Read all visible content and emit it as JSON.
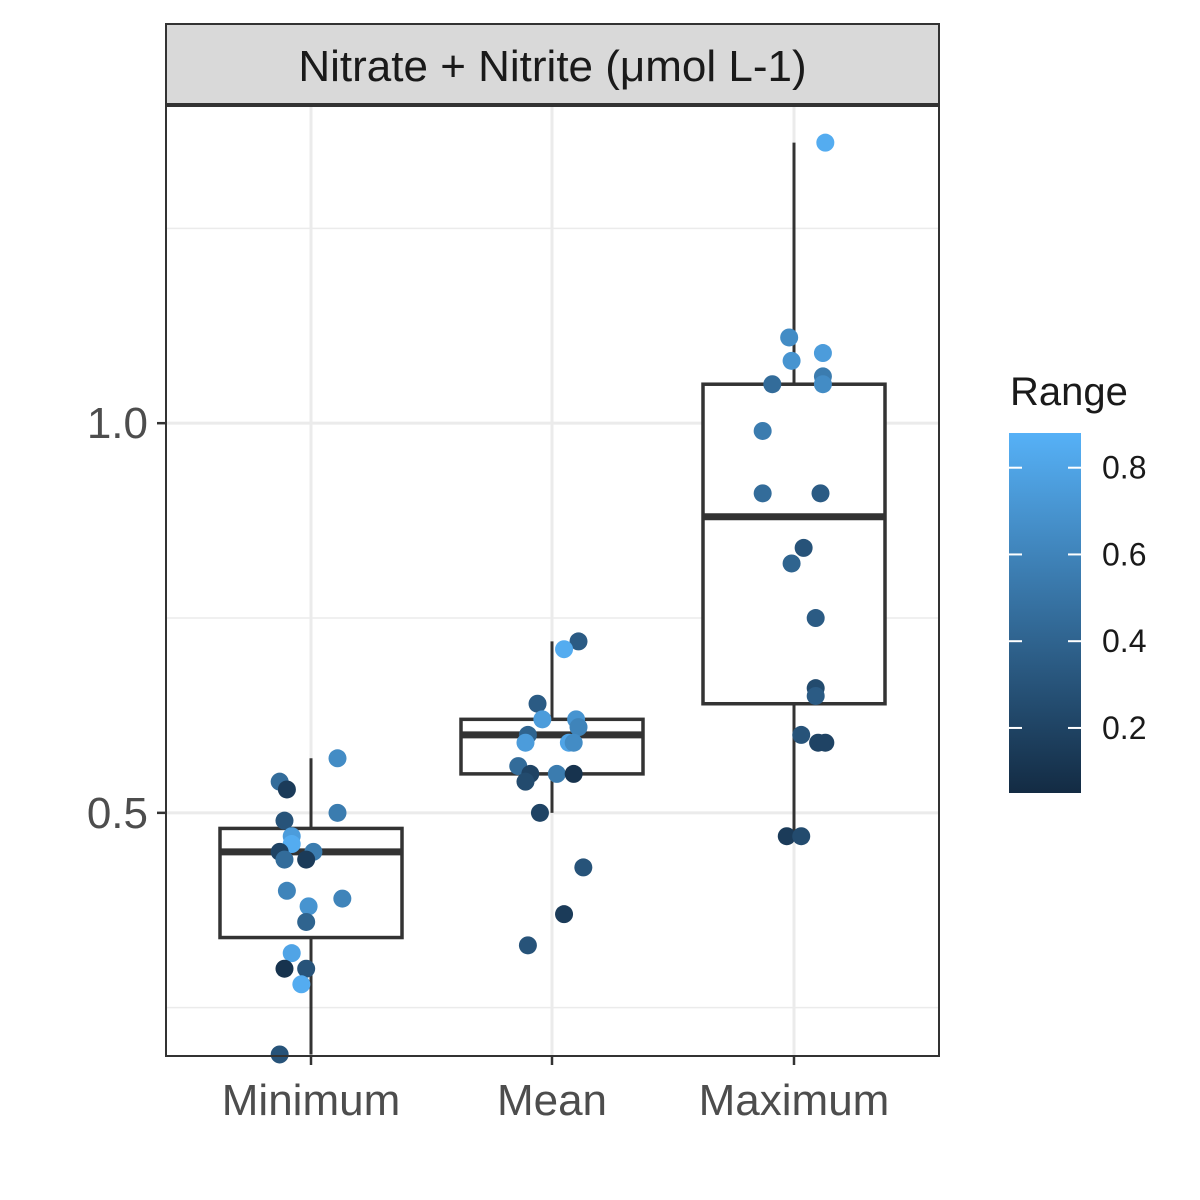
{
  "chart_data": {
    "type": "box",
    "facet_title": "Nitrate + Nitrite (μmol L-1)",
    "categories": [
      "Minimum",
      "Mean",
      "Maximum"
    ],
    "y_ticks": [
      {
        "value": 0.5,
        "label": "0.5"
      },
      {
        "value": 1.0,
        "label": "1.0"
      }
    ],
    "ylim": [
      0.188,
      1.407
    ],
    "grid": true,
    "boxes": [
      {
        "category": "Minimum",
        "whisker_low": 0.19,
        "q1": 0.34,
        "median": 0.45,
        "q3": 0.48,
        "whisker_high": 0.57
      },
      {
        "category": "Mean",
        "whisker_low": 0.5,
        "q1": 0.55,
        "median": 0.6,
        "q3": 0.62,
        "whisker_high": 0.72
      },
      {
        "category": "Maximum",
        "whisker_low": 0.47,
        "q1": 0.64,
        "median": 0.88,
        "q3": 1.05,
        "whisker_high": 1.36
      }
    ],
    "points": [
      {
        "category": "Minimum",
        "x_jitter": -0.13,
        "y": 0.54,
        "range": 0.45
      },
      {
        "category": "Minimum",
        "x_jitter": -0.1,
        "y": 0.53,
        "range": 0.15
      },
      {
        "category": "Minimum",
        "x_jitter": 0.11,
        "y": 0.57,
        "range": 0.65
      },
      {
        "category": "Minimum",
        "x_jitter": 0.11,
        "y": 0.5,
        "range": 0.55
      },
      {
        "category": "Minimum",
        "x_jitter": -0.11,
        "y": 0.49,
        "range": 0.3
      },
      {
        "category": "Minimum",
        "x_jitter": -0.08,
        "y": 0.47,
        "range": 0.75
      },
      {
        "category": "Minimum",
        "x_jitter": -0.08,
        "y": 0.46,
        "range": 0.85
      },
      {
        "category": "Minimum",
        "x_jitter": -0.13,
        "y": 0.45,
        "range": 0.2
      },
      {
        "category": "Minimum",
        "x_jitter": 0.01,
        "y": 0.45,
        "range": 0.55
      },
      {
        "category": "Minimum",
        "x_jitter": -0.11,
        "y": 0.44,
        "range": 0.45
      },
      {
        "category": "Minimum",
        "x_jitter": -0.02,
        "y": 0.44,
        "range": 0.15
      },
      {
        "category": "Minimum",
        "x_jitter": -0.1,
        "y": 0.4,
        "range": 0.6
      },
      {
        "category": "Minimum",
        "x_jitter": 0.13,
        "y": 0.39,
        "range": 0.6
      },
      {
        "category": "Minimum",
        "x_jitter": -0.01,
        "y": 0.38,
        "range": 0.7
      },
      {
        "category": "Minimum",
        "x_jitter": -0.02,
        "y": 0.36,
        "range": 0.4
      },
      {
        "category": "Minimum",
        "x_jitter": -0.08,
        "y": 0.32,
        "range": 0.8
      },
      {
        "category": "Minimum",
        "x_jitter": -0.11,
        "y": 0.3,
        "range": 0.1
      },
      {
        "category": "Minimum",
        "x_jitter": -0.02,
        "y": 0.3,
        "range": 0.3
      },
      {
        "category": "Minimum",
        "x_jitter": -0.04,
        "y": 0.28,
        "range": 0.85
      },
      {
        "category": "Minimum",
        "x_jitter": -0.13,
        "y": 0.19,
        "range": 0.3
      },
      {
        "category": "Mean",
        "x_jitter": 0.11,
        "y": 0.72,
        "range": 0.35
      },
      {
        "category": "Mean",
        "x_jitter": 0.05,
        "y": 0.71,
        "range": 0.85
      },
      {
        "category": "Mean",
        "x_jitter": -0.06,
        "y": 0.64,
        "range": 0.35
      },
      {
        "category": "Mean",
        "x_jitter": -0.04,
        "y": 0.62,
        "range": 0.75
      },
      {
        "category": "Mean",
        "x_jitter": 0.1,
        "y": 0.62,
        "range": 0.7
      },
      {
        "category": "Mean",
        "x_jitter": 0.11,
        "y": 0.61,
        "range": 0.6
      },
      {
        "category": "Mean",
        "x_jitter": -0.1,
        "y": 0.6,
        "range": 0.4
      },
      {
        "category": "Mean",
        "x_jitter": -0.11,
        "y": 0.59,
        "range": 0.75
      },
      {
        "category": "Mean",
        "x_jitter": 0.07,
        "y": 0.59,
        "range": 0.8
      },
      {
        "category": "Mean",
        "x_jitter": 0.09,
        "y": 0.59,
        "range": 0.65
      },
      {
        "category": "Mean",
        "x_jitter": -0.14,
        "y": 0.56,
        "range": 0.45
      },
      {
        "category": "Mean",
        "x_jitter": -0.09,
        "y": 0.55,
        "range": 0.2
      },
      {
        "category": "Mean",
        "x_jitter": 0.02,
        "y": 0.55,
        "range": 0.55
      },
      {
        "category": "Mean",
        "x_jitter": 0.09,
        "y": 0.55,
        "range": 0.1
      },
      {
        "category": "Mean",
        "x_jitter": -0.11,
        "y": 0.54,
        "range": 0.25
      },
      {
        "category": "Mean",
        "x_jitter": -0.05,
        "y": 0.5,
        "range": 0.2
      },
      {
        "category": "Mean",
        "x_jitter": 0.13,
        "y": 0.43,
        "range": 0.3
      },
      {
        "category": "Mean",
        "x_jitter": 0.05,
        "y": 0.37,
        "range": 0.15
      },
      {
        "category": "Mean",
        "x_jitter": -0.1,
        "y": 0.33,
        "range": 0.3
      },
      {
        "category": "Maximum",
        "x_jitter": 0.13,
        "y": 1.36,
        "range": 0.85
      },
      {
        "category": "Maximum",
        "x_jitter": -0.02,
        "y": 1.11,
        "range": 0.65
      },
      {
        "category": "Maximum",
        "x_jitter": 0.12,
        "y": 1.09,
        "range": 0.75
      },
      {
        "category": "Maximum",
        "x_jitter": -0.01,
        "y": 1.08,
        "range": 0.7
      },
      {
        "category": "Maximum",
        "x_jitter": 0.12,
        "y": 1.06,
        "range": 0.55
      },
      {
        "category": "Maximum",
        "x_jitter": -0.09,
        "y": 1.05,
        "range": 0.45
      },
      {
        "category": "Maximum",
        "x_jitter": 0.12,
        "y": 1.05,
        "range": 0.65
      },
      {
        "category": "Maximum",
        "x_jitter": -0.13,
        "y": 0.99,
        "range": 0.55
      },
      {
        "category": "Maximum",
        "x_jitter": -0.13,
        "y": 0.91,
        "range": 0.45
      },
      {
        "category": "Maximum",
        "x_jitter": 0.11,
        "y": 0.91,
        "range": 0.35
      },
      {
        "category": "Maximum",
        "x_jitter": 0.04,
        "y": 0.84,
        "range": 0.3
      },
      {
        "category": "Maximum",
        "x_jitter": -0.01,
        "y": 0.82,
        "range": 0.4
      },
      {
        "category": "Maximum",
        "x_jitter": 0.09,
        "y": 0.75,
        "range": 0.35
      },
      {
        "category": "Maximum",
        "x_jitter": 0.09,
        "y": 0.66,
        "range": 0.25
      },
      {
        "category": "Maximum",
        "x_jitter": 0.09,
        "y": 0.65,
        "range": 0.35
      },
      {
        "category": "Maximum",
        "x_jitter": 0.03,
        "y": 0.6,
        "range": 0.3
      },
      {
        "category": "Maximum",
        "x_jitter": 0.1,
        "y": 0.59,
        "range": 0.2
      },
      {
        "category": "Maximum",
        "x_jitter": 0.13,
        "y": 0.59,
        "range": 0.2
      },
      {
        "category": "Maximum",
        "x_jitter": -0.03,
        "y": 0.47,
        "range": 0.15
      },
      {
        "category": "Maximum",
        "x_jitter": 0.03,
        "y": 0.47,
        "range": 0.25
      }
    ],
    "color_scale": {
      "title": "Range",
      "low_color": "#132B43",
      "high_color": "#56B1F7",
      "limits": [
        0.05,
        0.88
      ],
      "ticks": [
        {
          "value": 0.2,
          "label": "0.2"
        },
        {
          "value": 0.4,
          "label": "0.4"
        },
        {
          "value": 0.6,
          "label": "0.6"
        },
        {
          "value": 0.8,
          "label": "0.8"
        }
      ],
      "legend_position": "right"
    }
  }
}
